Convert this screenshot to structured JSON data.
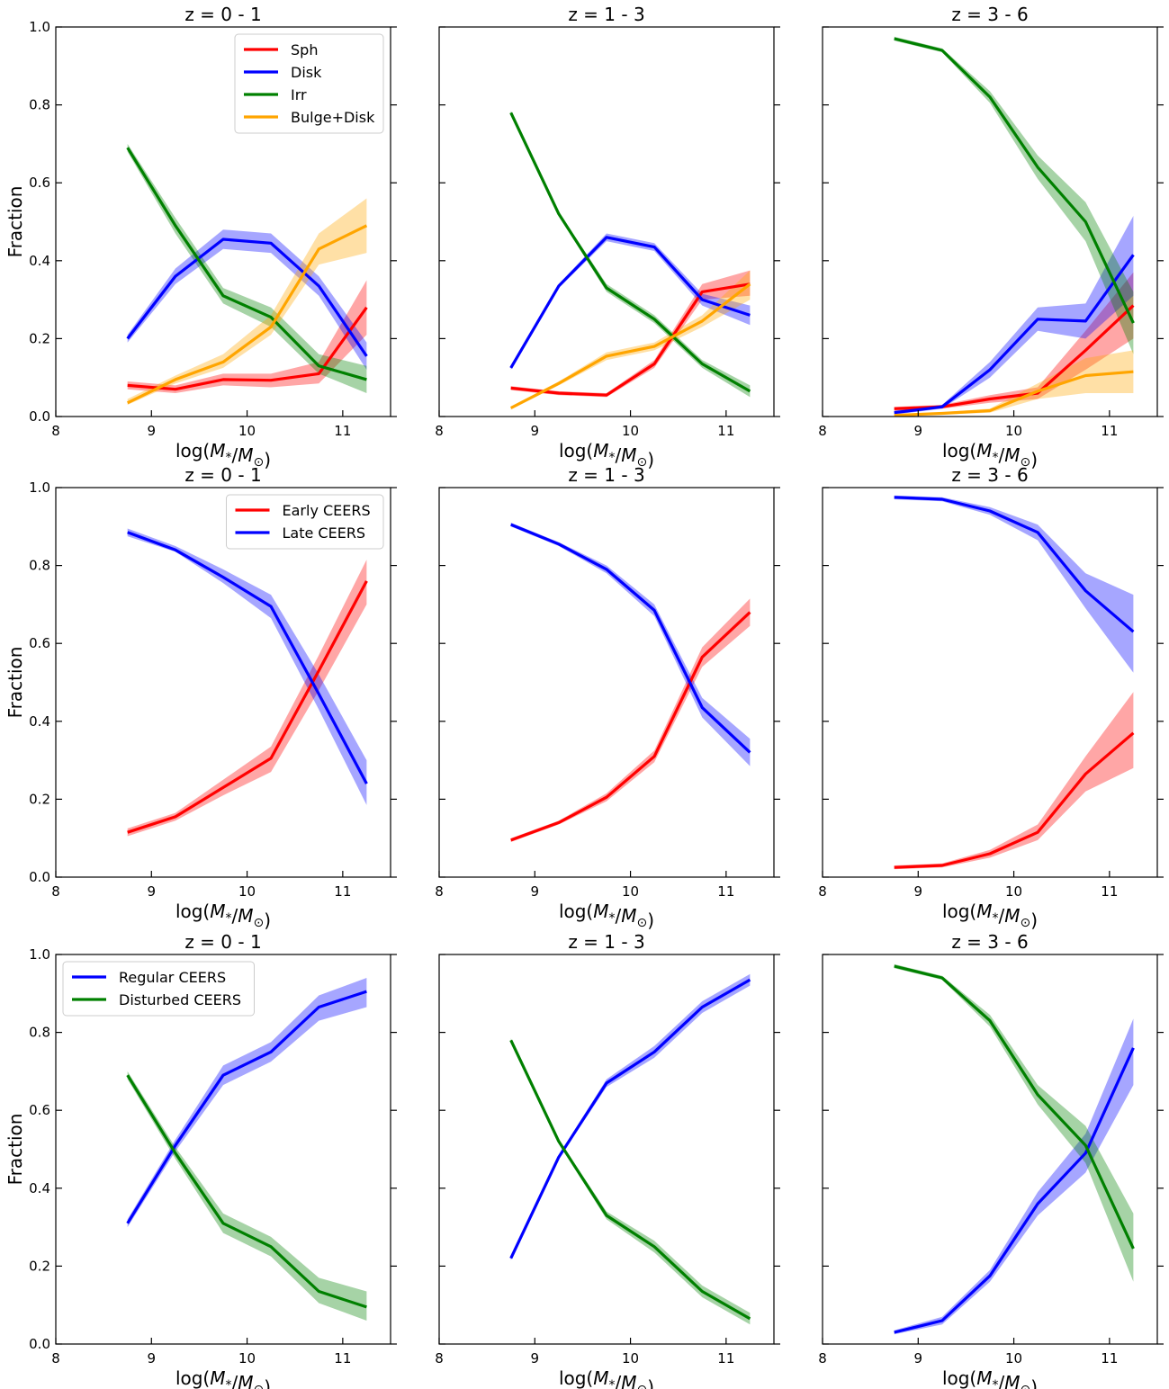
{
  "figure": {
    "x_ticks": [
      "8",
      "9",
      "10",
      "11"
    ],
    "y_ticks": [
      "0.0",
      "0.2",
      "0.4",
      "0.6",
      "0.8",
      "1.0"
    ]
  },
  "chart_data": [
    {
      "type": "line",
      "row": 0,
      "col": 0,
      "title": "z = 0 - 1",
      "xlabel": "log(M*/M⊙)",
      "ylabel": "Fraction",
      "xlim": [
        8,
        11.5
      ],
      "ylim": [
        0,
        1
      ],
      "legend": "top-right",
      "shaded_band": true,
      "x": [
        8.75,
        9.25,
        9.75,
        10.25,
        10.75,
        11.25
      ],
      "series": [
        {
          "name": "Sph",
          "color": "#ff0000",
          "values": [
            0.08,
            0.07,
            0.095,
            0.093,
            0.11,
            0.28
          ],
          "lower": [
            0.07,
            0.06,
            0.08,
            0.075,
            0.085,
            0.21
          ],
          "upper": [
            0.09,
            0.08,
            0.11,
            0.11,
            0.14,
            0.35
          ]
        },
        {
          "name": "Disk",
          "color": "#0000ff",
          "values": [
            0.2,
            0.36,
            0.455,
            0.445,
            0.335,
            0.155
          ],
          "lower": [
            0.19,
            0.34,
            0.43,
            0.42,
            0.31,
            0.12
          ],
          "upper": [
            0.21,
            0.38,
            0.48,
            0.47,
            0.36,
            0.19
          ]
        },
        {
          "name": "Irr",
          "color": "#008000",
          "values": [
            0.69,
            0.49,
            0.31,
            0.255,
            0.13,
            0.095
          ],
          "lower": [
            0.68,
            0.47,
            0.29,
            0.23,
            0.11,
            0.06
          ],
          "upper": [
            0.7,
            0.51,
            0.33,
            0.28,
            0.16,
            0.13
          ]
        },
        {
          "name": "Bulge+Disk",
          "color": "#ffa500",
          "values": [
            0.035,
            0.095,
            0.14,
            0.23,
            0.43,
            0.49
          ],
          "lower": [
            0.03,
            0.085,
            0.125,
            0.21,
            0.39,
            0.42
          ],
          "upper": [
            0.045,
            0.105,
            0.16,
            0.26,
            0.47,
            0.56
          ]
        }
      ]
    },
    {
      "type": "line",
      "row": 0,
      "col": 1,
      "title": "z = 1 - 3",
      "xlabel": "log(M*/M⊙)",
      "ylabel": "",
      "xlim": [
        8,
        11.5
      ],
      "ylim": [
        0,
        1
      ],
      "shaded_band": true,
      "x": [
        8.75,
        9.25,
        9.75,
        10.25,
        10.75,
        11.25
      ],
      "series": [
        {
          "name": "Sph",
          "color": "#ff0000",
          "values": [
            0.073,
            0.06,
            0.055,
            0.135,
            0.32,
            0.34
          ],
          "lower": [
            0.068,
            0.055,
            0.05,
            0.125,
            0.3,
            0.31
          ],
          "upper": [
            0.078,
            0.065,
            0.06,
            0.145,
            0.34,
            0.375
          ]
        },
        {
          "name": "Disk",
          "color": "#0000ff",
          "values": [
            0.125,
            0.335,
            0.46,
            0.435,
            0.3,
            0.26
          ],
          "lower": [
            0.12,
            0.33,
            0.45,
            0.425,
            0.285,
            0.235
          ],
          "upper": [
            0.13,
            0.34,
            0.47,
            0.445,
            0.315,
            0.285
          ]
        },
        {
          "name": "Irr",
          "color": "#008000",
          "values": [
            0.78,
            0.52,
            0.33,
            0.25,
            0.135,
            0.065
          ],
          "lower": [
            0.775,
            0.515,
            0.32,
            0.24,
            0.125,
            0.05
          ],
          "upper": [
            0.785,
            0.525,
            0.34,
            0.26,
            0.145,
            0.08
          ]
        },
        {
          "name": "Bulge+Disk",
          "color": "#ffa500",
          "values": [
            0.022,
            0.085,
            0.155,
            0.18,
            0.245,
            0.34
          ],
          "lower": [
            0.018,
            0.08,
            0.145,
            0.17,
            0.23,
            0.3
          ],
          "upper": [
            0.026,
            0.09,
            0.165,
            0.19,
            0.26,
            0.375
          ]
        }
      ]
    },
    {
      "type": "line",
      "row": 0,
      "col": 2,
      "title": "z = 3 - 6",
      "xlabel": "log(M*/M⊙)",
      "ylabel": "",
      "xlim": [
        8,
        11.5
      ],
      "ylim": [
        0,
        1
      ],
      "shaded_band": true,
      "x": [
        8.75,
        9.25,
        9.75,
        10.25,
        10.75,
        11.25
      ],
      "series": [
        {
          "name": "Sph",
          "color": "#ff0000",
          "values": [
            0.02,
            0.025,
            0.045,
            0.06,
            0.17,
            0.285
          ],
          "lower": [
            0.015,
            0.02,
            0.035,
            0.045,
            0.12,
            0.2
          ],
          "upper": [
            0.025,
            0.03,
            0.055,
            0.075,
            0.22,
            0.37
          ]
        },
        {
          "name": "Disk",
          "color": "#0000ff",
          "values": [
            0.01,
            0.025,
            0.12,
            0.25,
            0.245,
            0.415
          ],
          "lower": [
            0.005,
            0.02,
            0.1,
            0.22,
            0.2,
            0.31
          ],
          "upper": [
            0.015,
            0.03,
            0.14,
            0.28,
            0.29,
            0.515
          ]
        },
        {
          "name": "Irr",
          "color": "#008000",
          "values": [
            0.97,
            0.94,
            0.82,
            0.64,
            0.5,
            0.24
          ],
          "lower": [
            0.965,
            0.935,
            0.805,
            0.61,
            0.45,
            0.16
          ],
          "upper": [
            0.975,
            0.945,
            0.835,
            0.67,
            0.55,
            0.32
          ]
        },
        {
          "name": "Bulge+Disk",
          "color": "#ffa500",
          "values": [
            0.003,
            0.008,
            0.015,
            0.065,
            0.105,
            0.115
          ],
          "lower": [
            0.001,
            0.005,
            0.01,
            0.045,
            0.06,
            0.06
          ],
          "upper": [
            0.005,
            0.011,
            0.02,
            0.085,
            0.15,
            0.17
          ]
        }
      ]
    },
    {
      "type": "line",
      "row": 1,
      "col": 0,
      "title": "z = 0 - 1",
      "xlabel": "log(M*/M⊙)",
      "ylabel": "Fraction",
      "xlim": [
        8,
        11.5
      ],
      "ylim": [
        0,
        1
      ],
      "legend": "top-right",
      "shaded_band": true,
      "x": [
        8.75,
        9.25,
        9.75,
        10.25,
        10.75,
        11.25
      ],
      "series": [
        {
          "name": "Early CEERS",
          "color": "#ff0000",
          "values": [
            0.115,
            0.155,
            0.23,
            0.305,
            0.53,
            0.76
          ],
          "lower": [
            0.105,
            0.145,
            0.21,
            0.27,
            0.48,
            0.7
          ],
          "upper": [
            0.125,
            0.165,
            0.25,
            0.335,
            0.57,
            0.815
          ]
        },
        {
          "name": "Late CEERS",
          "color": "#0000ff",
          "values": [
            0.885,
            0.84,
            0.77,
            0.695,
            0.47,
            0.24
          ],
          "lower": [
            0.875,
            0.835,
            0.755,
            0.665,
            0.43,
            0.185
          ],
          "upper": [
            0.895,
            0.85,
            0.79,
            0.725,
            0.52,
            0.3
          ]
        }
      ]
    },
    {
      "type": "line",
      "row": 1,
      "col": 1,
      "title": "z = 1 - 3",
      "xlabel": "log(M*/M⊙)",
      "ylabel": "",
      "xlim": [
        8,
        11.5
      ],
      "ylim": [
        0,
        1
      ],
      "shaded_band": true,
      "x": [
        8.75,
        9.25,
        9.75,
        10.25,
        10.75,
        11.25
      ],
      "series": [
        {
          "name": "Early CEERS",
          "color": "#ff0000",
          "values": [
            0.095,
            0.14,
            0.205,
            0.31,
            0.565,
            0.68
          ],
          "lower": [
            0.09,
            0.135,
            0.195,
            0.295,
            0.54,
            0.645
          ],
          "upper": [
            0.1,
            0.145,
            0.215,
            0.325,
            0.59,
            0.715
          ]
        },
        {
          "name": "Late CEERS",
          "color": "#0000ff",
          "values": [
            0.905,
            0.855,
            0.79,
            0.685,
            0.435,
            0.32
          ],
          "lower": [
            0.9,
            0.85,
            0.78,
            0.67,
            0.41,
            0.285
          ],
          "upper": [
            0.91,
            0.86,
            0.8,
            0.7,
            0.46,
            0.355
          ]
        }
      ]
    },
    {
      "type": "line",
      "row": 1,
      "col": 2,
      "title": "z = 3 - 6",
      "xlabel": "log(M*/M⊙)",
      "ylabel": "",
      "xlim": [
        8,
        11.5
      ],
      "ylim": [
        0,
        1
      ],
      "shaded_band": true,
      "x": [
        8.75,
        9.25,
        9.75,
        10.25,
        10.75,
        11.25
      ],
      "series": [
        {
          "name": "Early CEERS",
          "color": "#ff0000",
          "values": [
            0.025,
            0.03,
            0.06,
            0.115,
            0.265,
            0.37
          ],
          "lower": [
            0.02,
            0.025,
            0.05,
            0.095,
            0.22,
            0.28
          ],
          "upper": [
            0.03,
            0.035,
            0.07,
            0.135,
            0.31,
            0.475
          ]
        },
        {
          "name": "Late CEERS",
          "color": "#0000ff",
          "values": [
            0.975,
            0.97,
            0.94,
            0.885,
            0.735,
            0.63
          ],
          "lower": [
            0.97,
            0.965,
            0.93,
            0.865,
            0.69,
            0.525
          ],
          "upper": [
            0.98,
            0.975,
            0.95,
            0.905,
            0.78,
            0.725
          ]
        }
      ]
    },
    {
      "type": "line",
      "row": 2,
      "col": 0,
      "title": "z = 0 - 1",
      "xlabel": "log(M*/M⊙)",
      "ylabel": "Fraction",
      "xlim": [
        8,
        11.5
      ],
      "ylim": [
        0,
        1
      ],
      "legend": "top-left",
      "shaded_band": true,
      "x": [
        8.75,
        9.25,
        9.75,
        10.25,
        10.75,
        11.25
      ],
      "series": [
        {
          "name": "Regular CEERS",
          "color": "#0000ff",
          "values": [
            0.31,
            0.51,
            0.69,
            0.75,
            0.865,
            0.905
          ],
          "lower": [
            0.3,
            0.495,
            0.665,
            0.725,
            0.83,
            0.865
          ],
          "upper": [
            0.32,
            0.525,
            0.715,
            0.775,
            0.895,
            0.94
          ]
        },
        {
          "name": "Disturbed CEERS",
          "color": "#008000",
          "values": [
            0.69,
            0.49,
            0.31,
            0.25,
            0.135,
            0.095
          ],
          "lower": [
            0.68,
            0.475,
            0.285,
            0.225,
            0.105,
            0.06
          ],
          "upper": [
            0.7,
            0.505,
            0.335,
            0.275,
            0.17,
            0.135
          ]
        }
      ]
    },
    {
      "type": "line",
      "row": 2,
      "col": 1,
      "title": "z = 1 - 3",
      "xlabel": "log(M*/M⊙)",
      "ylabel": "",
      "xlim": [
        8,
        11.5
      ],
      "ylim": [
        0,
        1
      ],
      "shaded_band": true,
      "x": [
        8.75,
        9.25,
        9.75,
        10.25,
        10.75,
        11.25
      ],
      "series": [
        {
          "name": "Regular CEERS",
          "color": "#0000ff",
          "values": [
            0.22,
            0.48,
            0.67,
            0.75,
            0.865,
            0.935
          ],
          "lower": [
            0.215,
            0.475,
            0.66,
            0.735,
            0.85,
            0.92
          ],
          "upper": [
            0.225,
            0.485,
            0.68,
            0.765,
            0.88,
            0.95
          ]
        },
        {
          "name": "Disturbed CEERS",
          "color": "#008000",
          "values": [
            0.78,
            0.52,
            0.33,
            0.25,
            0.135,
            0.065
          ],
          "lower": [
            0.775,
            0.515,
            0.32,
            0.235,
            0.12,
            0.05
          ],
          "upper": [
            0.785,
            0.525,
            0.34,
            0.265,
            0.15,
            0.08
          ]
        }
      ]
    },
    {
      "type": "line",
      "row": 2,
      "col": 2,
      "title": "z = 3 - 6",
      "xlabel": "log(M*/M⊙)",
      "ylabel": "",
      "xlim": [
        8,
        11.5
      ],
      "ylim": [
        0,
        1
      ],
      "shaded_band": true,
      "x": [
        8.75,
        9.25,
        9.75,
        10.25,
        10.75,
        11.25
      ],
      "series": [
        {
          "name": "Regular CEERS",
          "color": "#0000ff",
          "values": [
            0.03,
            0.06,
            0.175,
            0.36,
            0.49,
            0.76
          ],
          "lower": [
            0.025,
            0.05,
            0.16,
            0.33,
            0.44,
            0.665
          ],
          "upper": [
            0.035,
            0.07,
            0.19,
            0.39,
            0.54,
            0.835
          ]
        },
        {
          "name": "Disturbed CEERS",
          "color": "#008000",
          "values": [
            0.97,
            0.94,
            0.83,
            0.64,
            0.51,
            0.245
          ],
          "lower": [
            0.965,
            0.935,
            0.815,
            0.615,
            0.465,
            0.16
          ],
          "upper": [
            0.975,
            0.945,
            0.845,
            0.665,
            0.56,
            0.335
          ]
        }
      ]
    }
  ]
}
